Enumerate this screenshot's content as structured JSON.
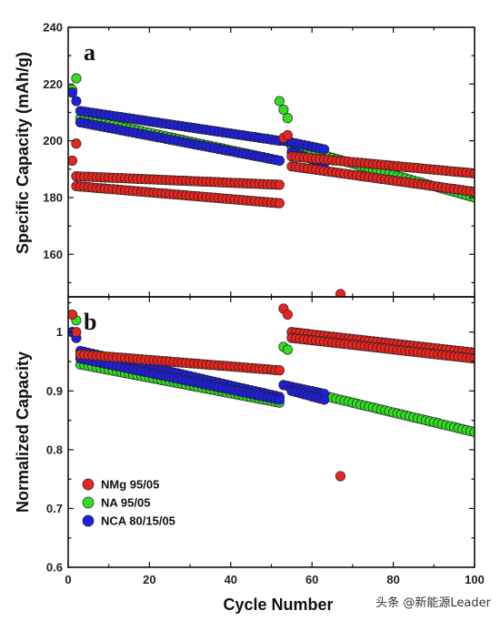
{
  "watermark": "头条 @新能源Leader",
  "colors": {
    "NMg": "#e8251f",
    "NA": "#33dd22",
    "NCA": "#1f1fdd",
    "stroke": "#222222"
  },
  "chart_data": {
    "type": "scatter",
    "xlabel": "Cycle Number",
    "xlim": [
      0,
      100
    ],
    "xticks": [
      "0",
      "20",
      "40",
      "60",
      "80",
      "100"
    ],
    "xtick_values": [
      0,
      20,
      40,
      60,
      80,
      100
    ],
    "legend": {
      "placement": "lower-left",
      "entries": [
        "NMg 95/05",
        "NA 95/05",
        "NCA 80/15/05"
      ]
    },
    "panels": [
      {
        "label": "a",
        "ylabel": "Specific Capacity (mAh/g)",
        "ylim": [
          145,
          240
        ],
        "yticks": [
          "160",
          "180",
          "200",
          "220",
          "240"
        ],
        "ytick_values": [
          160,
          180,
          200,
          220,
          240
        ],
        "series": [
          {
            "name": "NMg 95/05",
            "key": "NMg",
            "segments": [
              {
                "x": [
                  1,
                  2
                ],
                "y": [
                  193,
                  199
                ]
              },
              {
                "x": [
                  2,
                  52
                ],
                "y": [
                  187.5,
                  184.5
                ]
              },
              {
                "x": [
                  2,
                  52
                ],
                "y": [
                  184,
                  178
                ]
              },
              {
                "x": [
                  53,
                  54
                ],
                "y": [
                  201,
                  202
                ]
              },
              {
                "x": [
                  55,
                  100
                ],
                "y": [
                  194.5,
                  188.5
                ]
              },
              {
                "x": [
                  55,
                  100
                ],
                "y": [
                  191,
                  182
                ]
              }
            ],
            "points": [
              {
                "x": 67,
                "y": 146
              }
            ]
          },
          {
            "name": "NA 95/05",
            "key": "NA",
            "segments": [
              {
                "x": [
                  1,
                  2
                ],
                "y": [
                  218,
                  222
                ]
              },
              {
                "x": [
                  3,
                  52
                ],
                "y": [
                  208,
                  193
                ]
              },
              {
                "x": [
                  52,
                  54
                ],
                "y": [
                  214,
                  208
                ]
              },
              {
                "x": [
                  55,
                  100
                ],
                "y": [
                  198,
                  180
                ]
              }
            ],
            "points": []
          },
          {
            "name": "NCA 80/15/05",
            "key": "NCA",
            "segments": [
              {
                "x": [
                  1,
                  2
                ],
                "y": [
                  217,
                  214
                ]
              },
              {
                "x": [
                  3,
                  52
                ],
                "y": [
                  210.5,
                  200
                ]
              },
              {
                "x": [
                  3,
                  52
                ],
                "y": [
                  206.5,
                  193
                ]
              },
              {
                "x": [
                  53,
                  63
                ],
                "y": [
                  200,
                  197
                ]
              },
              {
                "x": [
                  55,
                  63
                ],
                "y": [
                  196,
                  192
                ]
              }
            ],
            "points": []
          }
        ]
      },
      {
        "label": "b",
        "ylabel": "Normalized Capacity",
        "ylim": [
          0.6,
          1.06
        ],
        "yticks": [
          "0.6",
          "0.7",
          "0.8",
          "0.9",
          "1"
        ],
        "ytick_values": [
          0.6,
          0.7,
          0.8,
          0.9,
          1.0
        ],
        "series": [
          {
            "name": "NMg 95/05",
            "key": "NMg",
            "segments": [
              {
                "x": [
                  1,
                  2
                ],
                "y": [
                  1.03,
                  1.0
                ]
              },
              {
                "x": [
                  3,
                  52
                ],
                "y": [
                  0.962,
                  0.935
                ]
              },
              {
                "x": [
                  53,
                  54
                ],
                "y": [
                  1.04,
                  1.03
                ]
              },
              {
                "x": [
                  55,
                  100
                ],
                "y": [
                  1.0,
                  0.965
                ]
              },
              {
                "x": [
                  55,
                  100
                ],
                "y": [
                  0.99,
                  0.955
                ]
              }
            ],
            "points": [
              {
                "x": 67,
                "y": 0.755
              }
            ]
          },
          {
            "name": "NA 95/05",
            "key": "NA",
            "segments": [
              {
                "x": [
                  1,
                  2
                ],
                "y": [
                  1.0,
                  1.02
                ]
              },
              {
                "x": [
                  3,
                  52
                ],
                "y": [
                  0.945,
                  0.88
                ]
              },
              {
                "x": [
                  53,
                  54
                ],
                "y": [
                  0.975,
                  0.97
                ]
              },
              {
                "x": [
                  55,
                  100
                ],
                "y": [
                  0.905,
                  0.83
                ]
              }
            ],
            "points": []
          },
          {
            "name": "NCA 80/15/05",
            "key": "NCA",
            "segments": [
              {
                "x": [
                  1,
                  2
                ],
                "y": [
                  1.0,
                  0.99
                ]
              },
              {
                "x": [
                  3,
                  52
                ],
                "y": [
                  0.968,
                  0.89
                ]
              },
              {
                "x": [
                  3,
                  52
                ],
                "y": [
                  0.955,
                  0.885
                ]
              },
              {
                "x": [
                  53,
                  63
                ],
                "y": [
                  0.91,
                  0.895
                ]
              },
              {
                "x": [
                  55,
                  63
                ],
                "y": [
                  0.9,
                  0.885
                ]
              }
            ],
            "points": []
          }
        ]
      }
    ]
  }
}
